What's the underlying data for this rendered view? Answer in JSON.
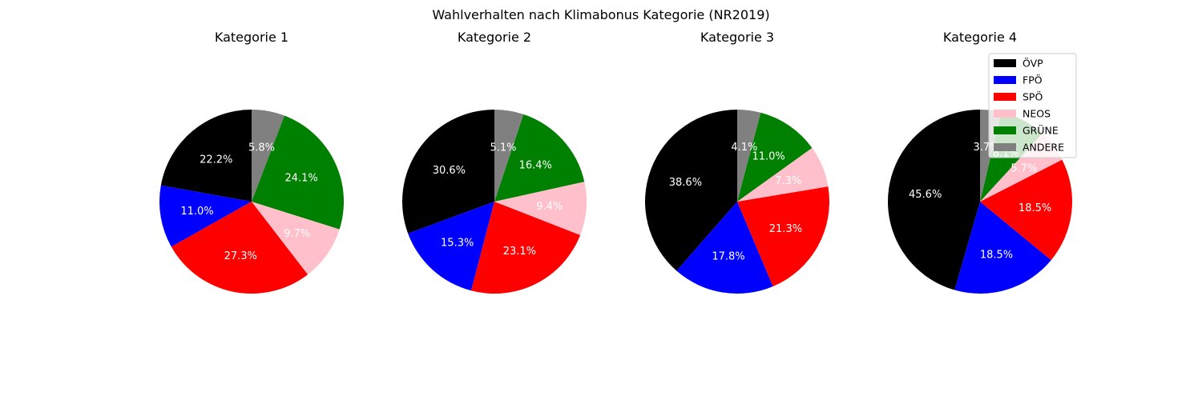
{
  "chart_data": {
    "type": "pie",
    "title": "Wahlverhalten nach Klimabonus Kategorie (NR2019)",
    "legend": {
      "placement": "top-right",
      "entries": [
        "ÖVP",
        "FPÖ",
        "SPÖ",
        "NEOS",
        "GRÜNE",
        "ANDERE"
      ]
    },
    "colors": [
      "#000000",
      "#0000ff",
      "#ff0000",
      "#ffc0cb",
      "#008000",
      "#808080"
    ],
    "start_angle_deg": 90,
    "direction": "counterclockwise",
    "pies": [
      {
        "title": "Kategorie 1",
        "values": [
          22.2,
          11.0,
          27.3,
          9.7,
          24.1,
          5.8
        ],
        "labels": [
          "22.2%",
          "11.0%",
          "27.3%",
          "9.7%",
          "24.1%",
          "5.8%"
        ]
      },
      {
        "title": "Kategorie 2",
        "values": [
          30.6,
          15.3,
          23.1,
          9.4,
          16.4,
          5.1
        ],
        "labels": [
          "30.6%",
          "15.3%",
          "23.1%",
          "9.4%",
          "16.4%",
          "5.1%"
        ]
      },
      {
        "title": "Kategorie 3",
        "values": [
          38.6,
          17.8,
          21.3,
          7.3,
          11.0,
          4.1
        ],
        "labels": [
          "38.6%",
          "17.8%",
          "21.3%",
          "7.3%",
          "11.0%",
          "4.1%"
        ]
      },
      {
        "title": "Kategorie 4",
        "values": [
          45.6,
          18.5,
          18.5,
          5.7,
          8.1,
          3.7
        ],
        "labels": [
          "45.6%",
          "18.5%",
          "18.5%",
          "5.7%",
          "8.1%",
          "3.7%"
        ]
      }
    ]
  }
}
